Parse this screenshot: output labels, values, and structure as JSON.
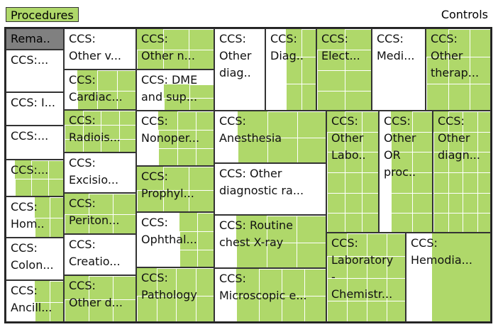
{
  "header": {
    "tab_label": "Procedures",
    "controls_label": "Controls"
  },
  "colors": {
    "fill": "#afd86a",
    "empty": "#ffffff",
    "selected": "#808080",
    "border": "#333333"
  },
  "chart_data": {
    "type": "treemap",
    "title": "Procedures",
    "cells": [
      {
        "label": "Rema..",
        "selected": true
      },
      {
        "label": "CCS:..."
      },
      {
        "label": "CCS: I..."
      },
      {
        "label": "CCS:..."
      },
      {
        "label": "CCS:..."
      },
      {
        "label": "CCS:\nHom.."
      },
      {
        "label": "CCS:\nColon..."
      },
      {
        "label": "CCS:\nAncill..."
      },
      {
        "label": "CCS:\nOther v..."
      },
      {
        "label": "CCS:\nCardiac..."
      },
      {
        "label": "CCS:\nRadiois..."
      },
      {
        "label": "CCS:\nExcisio..."
      },
      {
        "label": "CCS:\nPeriton..."
      },
      {
        "label": "CCS:\nCreatio..."
      },
      {
        "label": "CCS:\nOther d..."
      },
      {
        "label": "CCS:\nOther n..."
      },
      {
        "label": "CCS: DME\nand sup..."
      },
      {
        "label": "CCS:\nNonoper..."
      },
      {
        "label": "CCS:\nProphyl..."
      },
      {
        "label": "CCS:\nOphthal..."
      },
      {
        "label": "CCS:\nPathology"
      },
      {
        "label": "CCS:\nOther\ndiag.."
      },
      {
        "label": "CCS:\nDiag.."
      },
      {
        "label": "CCS:\nAnesthesia"
      },
      {
        "label": "CCS: Other\ndiagnostic ra..."
      },
      {
        "label": "CCS: Routine\nchest X-ray"
      },
      {
        "label": "CCS:\nMicroscopic e..."
      },
      {
        "label": "CCS:\nElect..."
      },
      {
        "label": "CCS:\nMedi..."
      },
      {
        "label": "CCS:\nOther\ntherap..."
      },
      {
        "label": "CCS:\nOther\nLabo.."
      },
      {
        "label": "CCS:\nOther\nOR\nproc.."
      },
      {
        "label": "CCS:\nOther\ndiagn..."
      },
      {
        "label": "CCS:\nLaboratory\n-\nChemistr..."
      },
      {
        "label": "CCS:\nHemodia..."
      }
    ]
  }
}
